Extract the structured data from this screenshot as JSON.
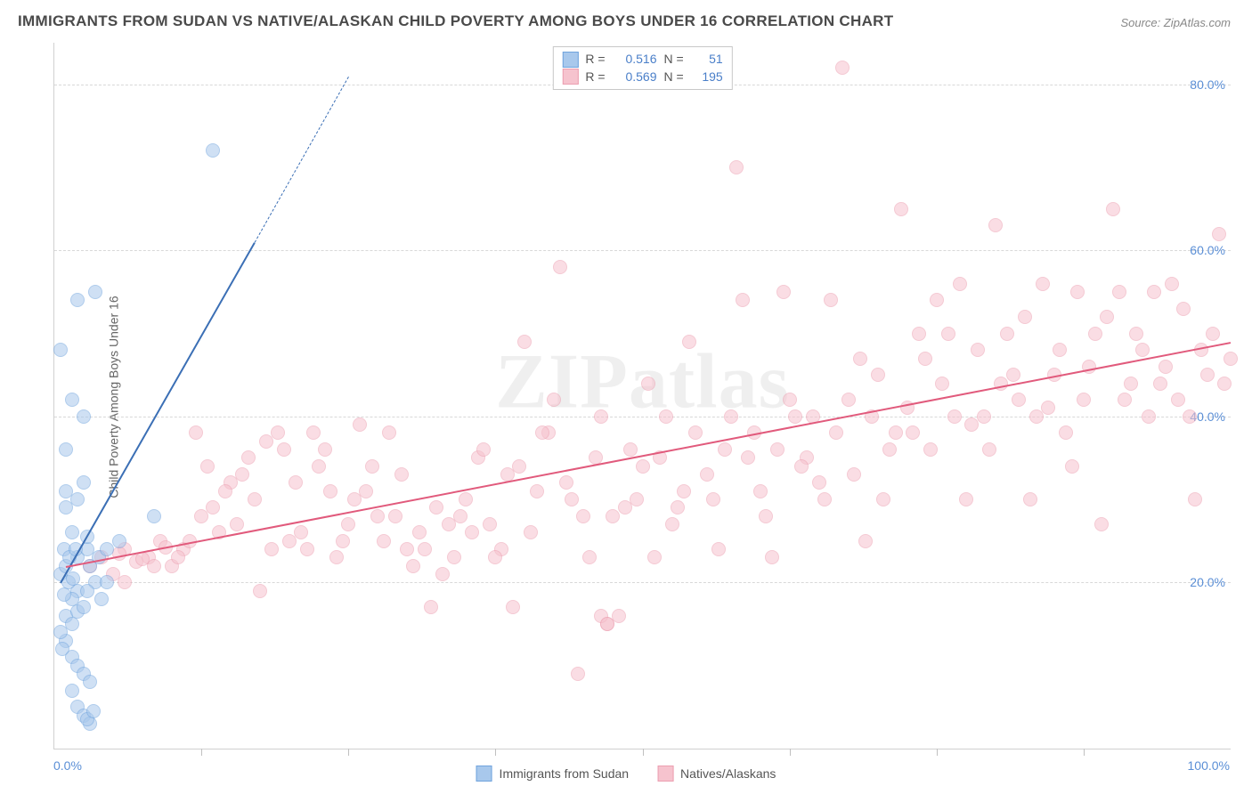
{
  "title": "IMMIGRANTS FROM SUDAN VS NATIVE/ALASKAN CHILD POVERTY AMONG BOYS UNDER 16 CORRELATION CHART",
  "source_label": "Source: ZipAtlas.com",
  "ylabel": "Child Poverty Among Boys Under 16",
  "watermark": "ZIPatlas",
  "chart": {
    "type": "scatter",
    "xlim": [
      0,
      100
    ],
    "ylim": [
      0,
      85
    ],
    "xticks": [
      0,
      12.5,
      25,
      37.5,
      50,
      62.5,
      75,
      87.5,
      100
    ],
    "xtick_labels": {
      "0": "0.0%",
      "100": "100.0%"
    },
    "yticks": [
      20,
      40,
      60,
      80
    ],
    "ytick_labels": {
      "20": "20.0%",
      "40": "40.0%",
      "60": "60.0%",
      "80": "80.0%"
    },
    "background_color": "#ffffff",
    "grid_color": "#d8d8d8",
    "axis_color": "#d0d0d0",
    "tick_label_color": "#5b8fd6",
    "marker_radius": 8,
    "marker_opacity": 0.55,
    "marker_stroke_width": 1.2
  },
  "series": [
    {
      "id": "sudan",
      "label": "Immigrants from Sudan",
      "fill_color": "#a8c8ec",
      "stroke_color": "#6fa3dd",
      "trend_color": "#3b6fb5",
      "R": "0.516",
      "N": "51",
      "trend": {
        "x1": 0.5,
        "y1": 20,
        "x2": 17,
        "y2": 61,
        "dash_to_x": 25,
        "dash_to_y": 81
      },
      "points": [
        [
          0.5,
          48
        ],
        [
          3.5,
          55
        ],
        [
          2.0,
          54
        ],
        [
          1.5,
          42
        ],
        [
          2.5,
          40
        ],
        [
          1.0,
          36
        ],
        [
          1.0,
          31
        ],
        [
          2.0,
          30
        ],
        [
          2.5,
          32
        ],
        [
          1.0,
          29
        ],
        [
          1.5,
          26
        ],
        [
          2.0,
          23
        ],
        [
          3.0,
          22
        ],
        [
          8.5,
          28
        ],
        [
          3.8,
          23
        ],
        [
          4.5,
          24
        ],
        [
          5.5,
          25
        ],
        [
          2.0,
          19
        ],
        [
          1.5,
          18
        ],
        [
          0.8,
          18.5
        ],
        [
          1.0,
          16
        ],
        [
          1.5,
          15
        ],
        [
          2.0,
          16.5
        ],
        [
          2.5,
          17
        ],
        [
          1.0,
          13
        ],
        [
          1.5,
          11
        ],
        [
          2.0,
          10
        ],
        [
          2.5,
          9
        ],
        [
          3.0,
          8
        ],
        [
          1.5,
          7
        ],
        [
          2.0,
          5
        ],
        [
          2.5,
          4
        ],
        [
          3.0,
          3
        ],
        [
          0.5,
          21
        ],
        [
          4.0,
          18
        ],
        [
          2.8,
          24
        ],
        [
          13.5,
          72
        ],
        [
          1.0,
          22
        ],
        [
          3.5,
          20
        ],
        [
          4.5,
          20
        ],
        [
          0.8,
          24
        ],
        [
          1.3,
          23
        ],
        [
          2.8,
          3.5
        ],
        [
          3.3,
          4.5
        ],
        [
          1.8,
          24
        ],
        [
          2.8,
          25.5
        ],
        [
          0.5,
          14
        ],
        [
          0.7,
          12
        ],
        [
          1.2,
          20
        ],
        [
          1.6,
          20.5
        ],
        [
          2.8,
          19
        ]
      ]
    },
    {
      "id": "natives",
      "label": "Natives/Alaskans",
      "fill_color": "#f6c3ce",
      "stroke_color": "#ec9eb0",
      "trend_color": "#e15a7c",
      "R": "0.569",
      "N": "195",
      "trend": {
        "x1": 1,
        "y1": 22,
        "x2": 100,
        "y2": 49
      },
      "points": [
        [
          3,
          22
        ],
        [
          4,
          23
        ],
        [
          5,
          21
        ],
        [
          6,
          24
        ],
        [
          7,
          22.5
        ],
        [
          6,
          20
        ],
        [
          8,
          23
        ],
        [
          9,
          25
        ],
        [
          10,
          22
        ],
        [
          11,
          24
        ],
        [
          12,
          38
        ],
        [
          13,
          34
        ],
        [
          14,
          26
        ],
        [
          15,
          32
        ],
        [
          16,
          33
        ],
        [
          17,
          30
        ],
        [
          18,
          37
        ],
        [
          19,
          38
        ],
        [
          20,
          25
        ],
        [
          21,
          26
        ],
        [
          22,
          38
        ],
        [
          23,
          36
        ],
        [
          24,
          23
        ],
        [
          25,
          27
        ],
        [
          26,
          39
        ],
        [
          27,
          34
        ],
        [
          28,
          25
        ],
        [
          29,
          28
        ],
        [
          30,
          24
        ],
        [
          31,
          26
        ],
        [
          32,
          17
        ],
        [
          33,
          21
        ],
        [
          34,
          23
        ],
        [
          35,
          30
        ],
        [
          36,
          35
        ],
        [
          37,
          27
        ],
        [
          38,
          24
        ],
        [
          39,
          17
        ],
        [
          40,
          49
        ],
        [
          41,
          31
        ],
        [
          42,
          38
        ],
        [
          43,
          58
        ],
        [
          44,
          30
        ],
        [
          45,
          28
        ],
        [
          46,
          35
        ],
        [
          47,
          15
        ],
        [
          48,
          16
        ],
        [
          49,
          36
        ],
        [
          50,
          34
        ],
        [
          51,
          23
        ],
        [
          52,
          40
        ],
        [
          53,
          29
        ],
        [
          54,
          49
        ],
        [
          55,
          82
        ],
        [
          56,
          30
        ],
        [
          57,
          36
        ],
        [
          58,
          70
        ],
        [
          59,
          35
        ],
        [
          60,
          31
        ],
        [
          61,
          23
        ],
        [
          62,
          55
        ],
        [
          63,
          40
        ],
        [
          64,
          35
        ],
        [
          65,
          32
        ],
        [
          66,
          54
        ],
        [
          67,
          82
        ],
        [
          68,
          33
        ],
        [
          69,
          25
        ],
        [
          70,
          45
        ],
        [
          71,
          36
        ],
        [
          72,
          65
        ],
        [
          73,
          38
        ],
        [
          74,
          47
        ],
        [
          75,
          54
        ],
        [
          76,
          50
        ],
        [
          77,
          56
        ],
        [
          78,
          39
        ],
        [
          79,
          40
        ],
        [
          80,
          63
        ],
        [
          81,
          50
        ],
        [
          82,
          42
        ],
        [
          83,
          30
        ],
        [
          84,
          56
        ],
        [
          85,
          45
        ],
        [
          86,
          38
        ],
        [
          87,
          55
        ],
        [
          88,
          46
        ],
        [
          89,
          27
        ],
        [
          90,
          65
        ],
        [
          91,
          42
        ],
        [
          92,
          50
        ],
        [
          93,
          40
        ],
        [
          94,
          44
        ],
        [
          95,
          56
        ],
        [
          96,
          53
        ],
        [
          97,
          30
        ],
        [
          98,
          45
        ],
        [
          99,
          62
        ],
        [
          100,
          47
        ],
        [
          8.5,
          22
        ],
        [
          10.5,
          23
        ],
        [
          12.5,
          28
        ],
        [
          14.5,
          31
        ],
        [
          16.5,
          35
        ],
        [
          18.5,
          24
        ],
        [
          20.5,
          32
        ],
        [
          22.5,
          34
        ],
        [
          24.5,
          25
        ],
        [
          26.5,
          31
        ],
        [
          28.5,
          38
        ],
        [
          30.5,
          22
        ],
        [
          32.5,
          29
        ],
        [
          34.5,
          28
        ],
        [
          36.5,
          36
        ],
        [
          38.5,
          33
        ],
        [
          40.5,
          26
        ],
        [
          42.5,
          42
        ],
        [
          44.5,
          9
        ],
        [
          46.5,
          40
        ],
        [
          48.5,
          29
        ],
        [
          50.5,
          44
        ],
        [
          52.5,
          27
        ],
        [
          54.5,
          38
        ],
        [
          56.5,
          24
        ],
        [
          58.5,
          54
        ],
        [
          60.5,
          28
        ],
        [
          62.5,
          42
        ],
        [
          64.5,
          40
        ],
        [
          66.5,
          38
        ],
        [
          68.5,
          47
        ],
        [
          70.5,
          30
        ],
        [
          72.5,
          41
        ],
        [
          74.5,
          36
        ],
        [
          76.5,
          40
        ],
        [
          78.5,
          48
        ],
        [
          80.5,
          44
        ],
        [
          82.5,
          52
        ],
        [
          84.5,
          41
        ],
        [
          86.5,
          34
        ],
        [
          88.5,
          50
        ],
        [
          90.5,
          55
        ],
        [
          92.5,
          48
        ],
        [
          94.5,
          46
        ],
        [
          96.5,
          40
        ],
        [
          98.5,
          50
        ],
        [
          15.5,
          27
        ],
        [
          25.5,
          30
        ],
        [
          35.5,
          26
        ],
        [
          45.5,
          23
        ],
        [
          55.5,
          33
        ],
        [
          65.5,
          30
        ],
        [
          75.5,
          44
        ],
        [
          85.5,
          48
        ],
        [
          95.5,
          42
        ],
        [
          5.5,
          23.5
        ],
        [
          7.5,
          22.8
        ],
        [
          9.5,
          24.2
        ],
        [
          11.5,
          25
        ],
        [
          13.5,
          29
        ],
        [
          17.5,
          19
        ],
        [
          19.5,
          36
        ],
        [
          21.5,
          24
        ],
        [
          23.5,
          31
        ],
        [
          27.5,
          28
        ],
        [
          29.5,
          33
        ],
        [
          31.5,
          24
        ],
        [
          33.5,
          27
        ],
        [
          37.5,
          23
        ],
        [
          39.5,
          34
        ],
        [
          41.5,
          38
        ],
        [
          43.5,
          32
        ],
        [
          47.5,
          28
        ],
        [
          49.5,
          30
        ],
        [
          51.5,
          35
        ],
        [
          53.5,
          31
        ],
        [
          57.5,
          40
        ],
        [
          59.5,
          38
        ],
        [
          61.5,
          36
        ],
        [
          63.5,
          34
        ],
        [
          67.5,
          42
        ],
        [
          69.5,
          40
        ],
        [
          71.5,
          38
        ],
        [
          73.5,
          50
        ],
        [
          77.5,
          30
        ],
        [
          79.5,
          36
        ],
        [
          81.5,
          45
        ],
        [
          83.5,
          40
        ],
        [
          87.5,
          42
        ],
        [
          89.5,
          52
        ],
        [
          91.5,
          44
        ],
        [
          93.5,
          55
        ],
        [
          97.5,
          48
        ],
        [
          99.5,
          44
        ],
        [
          46.5,
          16
        ],
        [
          47.0,
          15
        ]
      ]
    }
  ],
  "legend_stats_labels": {
    "R": "R  =",
    "N": "N  ="
  }
}
